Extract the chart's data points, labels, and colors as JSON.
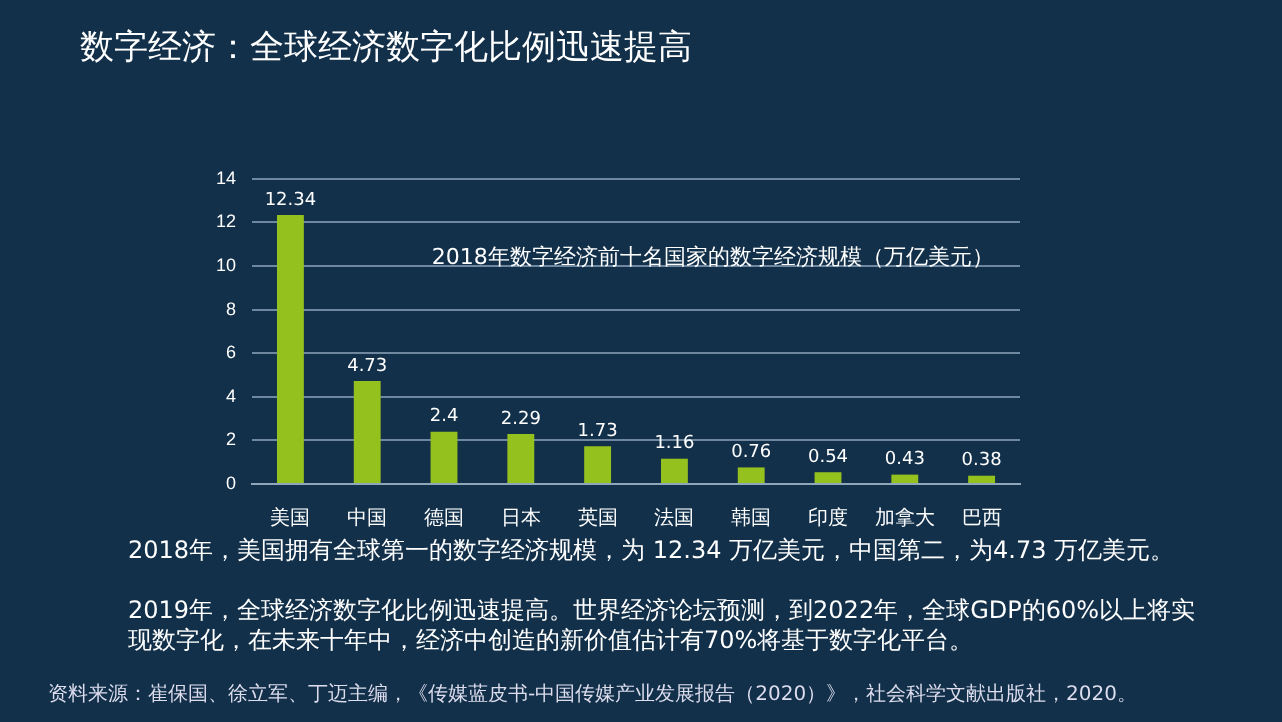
{
  "chart_data": {
    "type": "bar",
    "title": "数字经济：全球经济数字化比例迅速提高",
    "subtitle": "2018年数字经济前十名国家的数字经济规模（万亿美元）",
    "categories": [
      "美国",
      "中国",
      "德国",
      "日本",
      "英国",
      "法国",
      "韩国",
      "印度",
      "加拿大",
      "巴西"
    ],
    "values": [
      12.34,
      4.73,
      2.4,
      2.29,
      1.73,
      1.16,
      0.76,
      0.54,
      0.43,
      0.38
    ],
    "value_labels": [
      "12.34",
      "4.73",
      "2.4",
      "2.29",
      "1.73",
      "1.16",
      "0.76",
      "0.54",
      "0.43",
      "0.38"
    ],
    "color": "#95c11f",
    "ylim": [
      0,
      14
    ],
    "yticks": [
      0,
      2,
      4,
      6,
      8,
      10,
      12,
      14
    ],
    "grid": "y",
    "annotations": [
      "2018年，美国拥有全球第一的数字经济规模，为 12.34 万亿美元，中国第二，为4.73 万亿美元。",
      "2019年，全球经济数字化比例迅速提高。世界经济论坛预测，到2022年，全球GDP的60%以上将实现数字化，在未来十年中，经济中创造的新价值估计有70%将基于数字化平台。",
      "资料来源：崔保国、徐立军、丁迈主编，《传媒蓝皮书-中国传媒产业发展报告（2020）》，社会科学文献出版社，2020。"
    ]
  }
}
